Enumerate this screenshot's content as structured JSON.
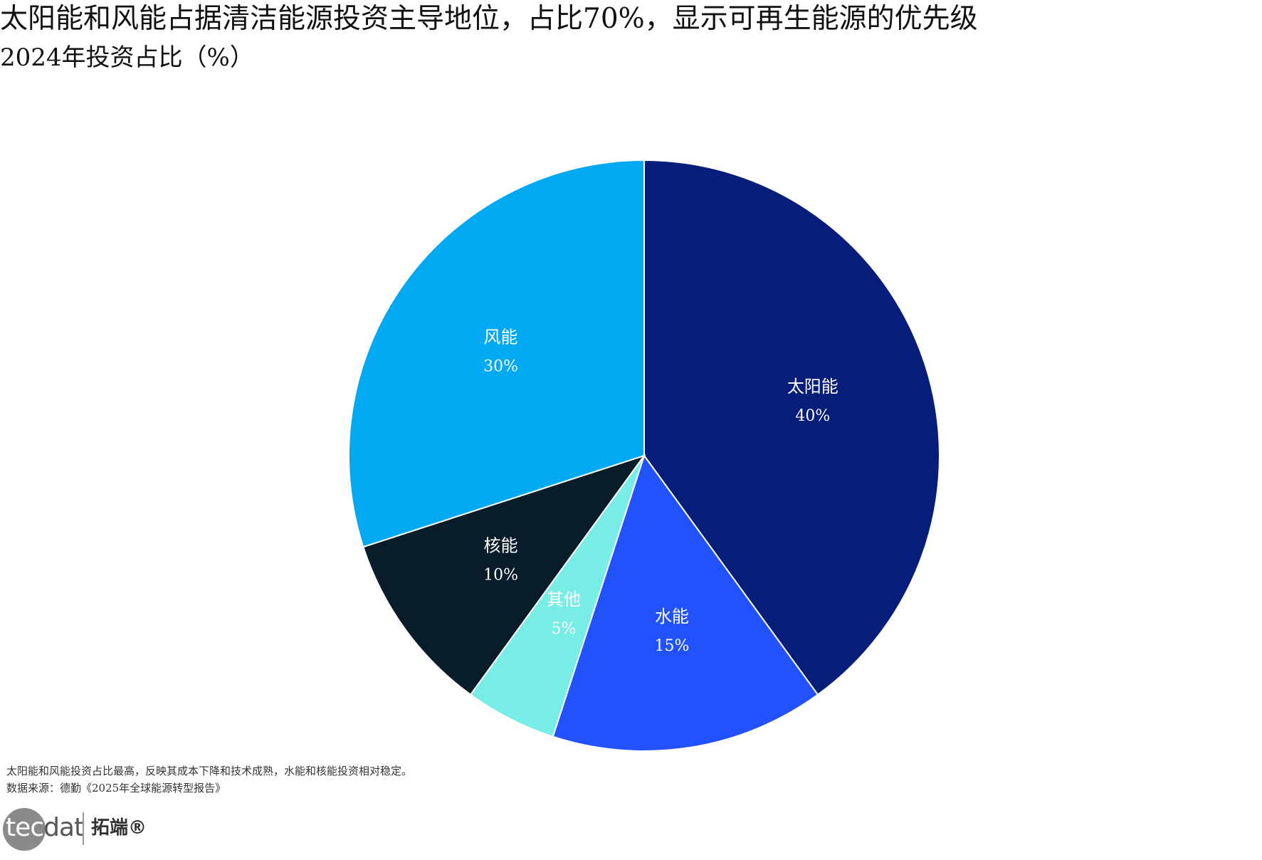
{
  "header": {
    "title": "太阳能和风能占据清洁能源投资主导地位，占比70%，显示可再生能源的优先级",
    "subtitle": "2024年投资占比（%）"
  },
  "footer": {
    "note": "太阳能和风能投资占比最高，反映其成本下降和技术成熟，水能和核能投资相对稳定。",
    "source": "数据来源：德勤《2025年全球能源转型报告》",
    "logo_brand_light": "tec",
    "logo_brand_dark": "dat",
    "logo_cn": "拓端®"
  },
  "chart_data": {
    "type": "pie",
    "title": "太阳能和风能占据清洁能源投资主导地位，占比70%，显示可再生能源的优先级",
    "subtitle": "2024年投资占比（%）",
    "start_angle": "12 o'clock",
    "direction": "clockwise",
    "slices": [
      {
        "label": "太阳能",
        "value": 40,
        "display": "40%",
        "color": "#061d79"
      },
      {
        "label": "水能",
        "value": 15,
        "display": "15%",
        "color": "#2251fe"
      },
      {
        "label": "其他",
        "value": 5,
        "display": "5%",
        "color": "#77ede5"
      },
      {
        "label": "核能",
        "value": 10,
        "display": "10%",
        "color": "#081c2a"
      },
      {
        "label": "风能",
        "value": 30,
        "display": "30%",
        "color": "#01a8f2"
      }
    ]
  }
}
